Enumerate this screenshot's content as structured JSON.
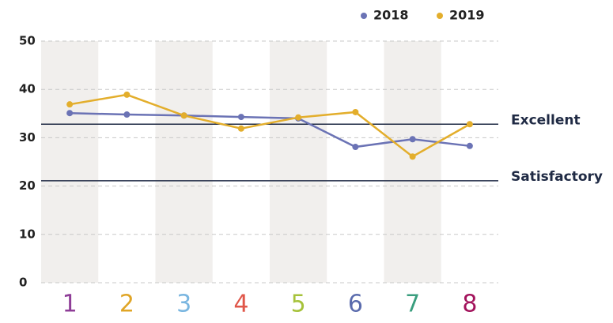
{
  "chart_data": {
    "type": "line",
    "categories": [
      "1",
      "2",
      "3",
      "4",
      "5",
      "6",
      "7",
      "8"
    ],
    "category_colors": [
      "#8e3d97",
      "#e0a526",
      "#7ab6e0",
      "#e0574a",
      "#a6c23a",
      "#5a6bad",
      "#3a9e7e",
      "#a3135c"
    ],
    "series": [
      {
        "name": "2018",
        "color": "#6b73b5",
        "values": [
          35.1,
          34.8,
          34.6,
          34.3,
          34.0,
          28.1,
          29.7,
          28.3
        ]
      },
      {
        "name": "2019",
        "color": "#e3ae2c",
        "values": [
          36.9,
          38.9,
          34.6,
          31.9,
          34.2,
          35.3,
          26.1,
          32.8
        ]
      }
    ],
    "reference_lines": [
      {
        "label": "Excellent",
        "value": 32.8
      },
      {
        "label": "Satisfactory",
        "value": 21.1
      }
    ],
    "ylim": [
      0,
      50
    ],
    "yticks": [
      0,
      10,
      20,
      30,
      40,
      50
    ],
    "grid": true,
    "legend": "top-right"
  }
}
